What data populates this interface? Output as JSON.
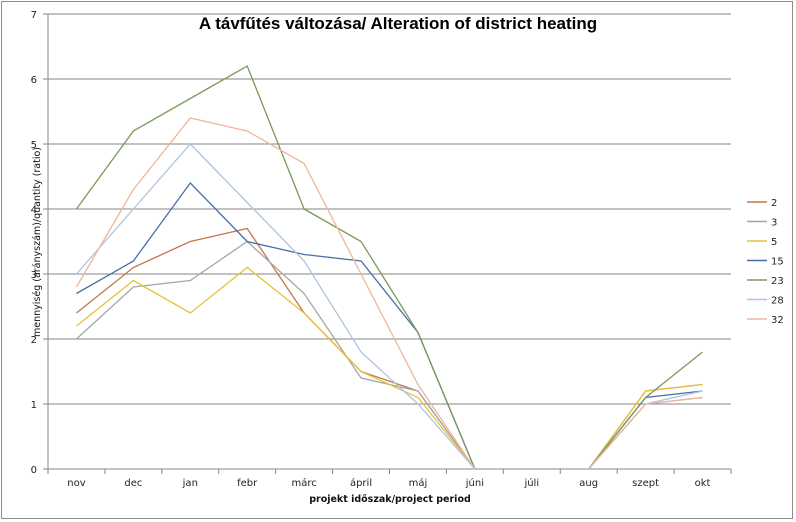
{
  "chart_data": {
    "type": "line",
    "title": "A távfűtés változása/ Alteration of district heating",
    "xlabel": "projekt időszak/project period",
    "ylabel": "mennyiség (arányszám)/quantity (ratio)",
    "ylim": [
      0,
      7
    ],
    "yticks": [
      "0",
      "1",
      "2",
      "3",
      "4",
      "5",
      "6",
      "7"
    ],
    "grid": true,
    "legend_position": "right",
    "categories": [
      "nov",
      "dec",
      "jan",
      "febr",
      "márc",
      "ápril",
      "máj",
      "júni",
      "júli",
      "aug",
      "szept",
      "okt"
    ],
    "series": [
      {
        "name": "2",
        "color": "#c0784a",
        "values": [
          2.4,
          3.1,
          3.5,
          3.7,
          2.4,
          1.5,
          1.2,
          0,
          null,
          0,
          1.2,
          1.3
        ]
      },
      {
        "name": "3",
        "color": "#a6a6a6",
        "values": [
          2.0,
          2.8,
          2.9,
          3.5,
          2.7,
          1.4,
          1.2,
          0,
          null,
          0,
          1.0,
          1.1
        ]
      },
      {
        "name": "5",
        "color": "#e6c239",
        "values": [
          2.2,
          2.9,
          2.4,
          3.1,
          2.4,
          1.5,
          1.1,
          0,
          null,
          0,
          1.2,
          1.3
        ]
      },
      {
        "name": "15",
        "color": "#4a6ea8",
        "values": [
          2.7,
          3.2,
          4.4,
          3.5,
          3.3,
          3.2,
          2.1,
          0,
          null,
          0,
          1.1,
          1.2
        ]
      },
      {
        "name": "23",
        "color": "#7a9a5a",
        "values": [
          4.0,
          5.2,
          5.7,
          6.2,
          4.0,
          3.5,
          2.1,
          0,
          null,
          0,
          1.1,
          1.8
        ]
      },
      {
        "name": "28",
        "color": "#aec4e2",
        "values": [
          3.0,
          4.0,
          5.0,
          4.1,
          3.2,
          1.8,
          1.0,
          0,
          null,
          0,
          1.0,
          1.2
        ]
      },
      {
        "name": "32",
        "color": "#f0b59b",
        "values": [
          2.8,
          4.3,
          5.4,
          5.2,
          4.7,
          3.0,
          1.3,
          0,
          null,
          0,
          1.0,
          1.1
        ]
      }
    ]
  }
}
